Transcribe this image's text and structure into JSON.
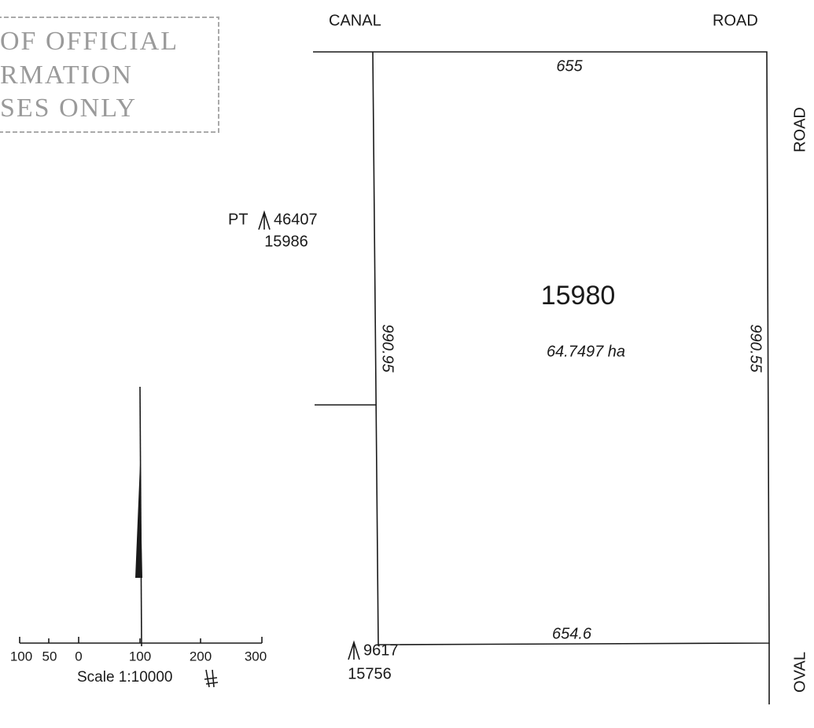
{
  "stamp": {
    "lines": [
      "OF OFFICIAL",
      "RMATION",
      "SES ONLY"
    ]
  },
  "roads": {
    "top_left": "CANAL",
    "top_right": "ROAD",
    "right_upper": "ROAD",
    "right_lower": "OVAL"
  },
  "parcel": {
    "number": "15980",
    "area": "64.7497 ha",
    "dimensions": {
      "top": "655",
      "bottom": "654.6",
      "left": "990.95",
      "right": "990.55"
    }
  },
  "neighbours": [
    {
      "prefix": "PT",
      "reference": "46407",
      "number": "15986"
    },
    {
      "reference": "9617",
      "number": "15756"
    }
  ],
  "scale": {
    "labels": [
      "100",
      "50",
      "0",
      "100",
      "200",
      "300"
    ],
    "caption": "Scale 1:10000"
  }
}
